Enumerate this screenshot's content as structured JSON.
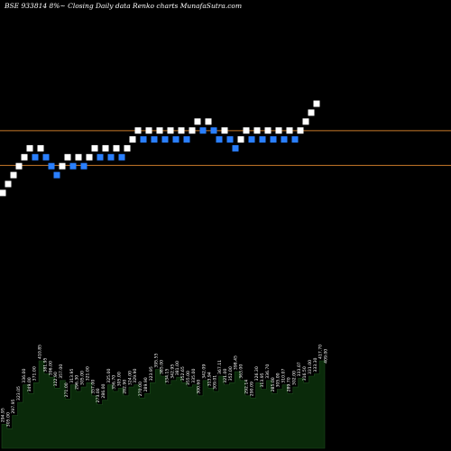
{
  "chart_data": {
    "type": "renko",
    "title": "BSE 933814  8%~  Closing Daily data  Renko  charts MunafaSutra.com",
    "ylim": [
      290,
      475
    ],
    "reference_lines": [
      {
        "value": 400.5,
        "color": "#c87a2a"
      },
      {
        "value": 377.5,
        "color": "#c87a2a"
      }
    ],
    "colors": {
      "up": "#ffffff",
      "down": "#2a7fff",
      "background": "#000000",
      "volume": "#0a2a0a"
    },
    "bricks": [
      {
        "dir": "up",
        "value": 359.3
      },
      {
        "dir": "up",
        "value": 365.2
      },
      {
        "dir": "up",
        "value": 371.1
      },
      {
        "dir": "up",
        "value": 377.0
      },
      {
        "dir": "up",
        "value": 382.9
      },
      {
        "dir": "up",
        "value": 388.8
      },
      {
        "dir": "down",
        "value": 382.9
      },
      {
        "dir": "up",
        "value": 388.8
      },
      {
        "dir": "down",
        "value": 382.9
      },
      {
        "dir": "down",
        "value": 377.0
      },
      {
        "dir": "down",
        "value": 371.1
      },
      {
        "dir": "up",
        "value": 377.0
      },
      {
        "dir": "up",
        "value": 382.9
      },
      {
        "dir": "down",
        "value": 377.0
      },
      {
        "dir": "up",
        "value": 382.9
      },
      {
        "dir": "down",
        "value": 377.0
      },
      {
        "dir": "up",
        "value": 382.9
      },
      {
        "dir": "up",
        "value": 388.8
      },
      {
        "dir": "down",
        "value": 382.9
      },
      {
        "dir": "up",
        "value": 388.8
      },
      {
        "dir": "down",
        "value": 382.9
      },
      {
        "dir": "up",
        "value": 388.8
      },
      {
        "dir": "down",
        "value": 382.9
      },
      {
        "dir": "up",
        "value": 388.8
      },
      {
        "dir": "up",
        "value": 394.7
      },
      {
        "dir": "up",
        "value": 400.6
      },
      {
        "dir": "down",
        "value": 394.7
      },
      {
        "dir": "up",
        "value": 400.6
      },
      {
        "dir": "down",
        "value": 394.7
      },
      {
        "dir": "up",
        "value": 400.6
      },
      {
        "dir": "down",
        "value": 394.7
      },
      {
        "dir": "up",
        "value": 400.6
      },
      {
        "dir": "down",
        "value": 394.7
      },
      {
        "dir": "up",
        "value": 400.6
      },
      {
        "dir": "down",
        "value": 394.7
      },
      {
        "dir": "up",
        "value": 400.6
      },
      {
        "dir": "up",
        "value": 406.5
      },
      {
        "dir": "down",
        "value": 400.6
      },
      {
        "dir": "up",
        "value": 406.5
      },
      {
        "dir": "down",
        "value": 400.6
      },
      {
        "dir": "down",
        "value": 394.7
      },
      {
        "dir": "up",
        "value": 400.6
      },
      {
        "dir": "down",
        "value": 394.7
      },
      {
        "dir": "down",
        "value": 388.8
      },
      {
        "dir": "up",
        "value": 394.7
      },
      {
        "dir": "up",
        "value": 400.6
      },
      {
        "dir": "down",
        "value": 394.7
      },
      {
        "dir": "up",
        "value": 400.6
      },
      {
        "dir": "down",
        "value": 394.7
      },
      {
        "dir": "up",
        "value": 400.6
      },
      {
        "dir": "down",
        "value": 394.7
      },
      {
        "dir": "up",
        "value": 400.6
      },
      {
        "dir": "down",
        "value": 394.7
      },
      {
        "dir": "up",
        "value": 400.6
      },
      {
        "dir": "down",
        "value": 394.7
      },
      {
        "dir": "up",
        "value": 400.6
      },
      {
        "dir": "up",
        "value": 406.5
      },
      {
        "dir": "up",
        "value": 412.4
      },
      {
        "dir": "up",
        "value": 418.3
      }
    ],
    "close_labels": [
      "294.95",
      "305.00",
      "297.95",
      "323.05",
      "336.00",
      "349.00",
      "371.00",
      "410.85",
      "381.95",
      "396.00",
      "322.90",
      "357.00",
      "271.00",
      "313.95",
      "296.30",
      "305.00",
      "321.00",
      "357.00",
      "273.00",
      "286.00",
      "325.00",
      "356.70",
      "305.00",
      "282.90",
      "324.00",
      "329.90",
      "270.00",
      "289.90",
      "323.95",
      "395.55",
      "385.00",
      "334.15",
      "342.95",
      "381.00",
      "352.65",
      "355.00",
      "335.00",
      "300.60",
      "342.09",
      "313.94",
      "309.01",
      "367.11",
      "321.00",
      "352.00",
      "398.45",
      "363.00",
      "292.14",
      "290.09",
      "326.30",
      "313.95",
      "336.70",
      "285.00",
      "305.00",
      "310.07",
      "289.70",
      "302.00",
      "333.07",
      "316.50",
      "331.00",
      "333.30",
      "417.70",
      "409.00"
    ],
    "volume": [
      22,
      18,
      30,
      42,
      58,
      50,
      60,
      80,
      68,
      65,
      55,
      62,
      45,
      58,
      52,
      56,
      60,
      48,
      40,
      44,
      58,
      52,
      55,
      48,
      56,
      58,
      46,
      50,
      60,
      72,
      66,
      58,
      62,
      65,
      60,
      56,
      58,
      48,
      62,
      55,
      52,
      66,
      58,
      60,
      70,
      62,
      48,
      46,
      60,
      54,
      62,
      50,
      54,
      58,
      50,
      56,
      64,
      60,
      66,
      68,
      80,
      76
    ]
  }
}
